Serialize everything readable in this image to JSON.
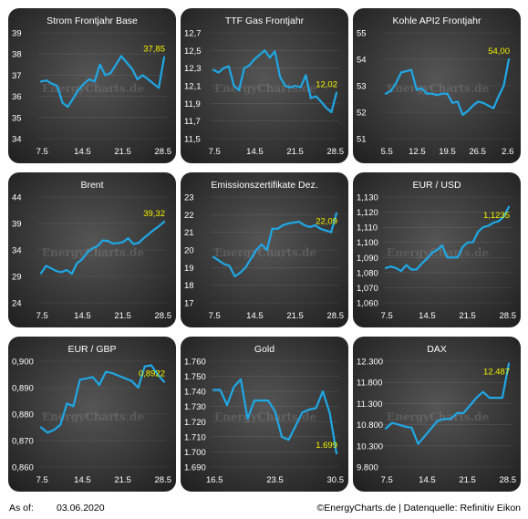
{
  "footer": {
    "as_of_label": "As of:",
    "as_of_date": "03.06.2020",
    "credit": "©EnergyCharts.de | Datenquelle: Refinitiv Eikon"
  },
  "watermark": "EnergyCharts.de",
  "colors": {
    "panel_bg_outer": "#1e1e1e",
    "panel_bg_inner": "#555555",
    "line": "#1fa8e6",
    "last_label": "#f5f500",
    "text": "#ffffff"
  },
  "chart_data": [
    {
      "type": "line",
      "title": "Strom Frontjahr Base",
      "x_ticks": [
        "7.5",
        "14.5",
        "21.5",
        "28.5"
      ],
      "y_ticks": [
        "34",
        "35",
        "36",
        "37",
        "38",
        "39"
      ],
      "ylim": [
        34,
        39
      ],
      "last_label": "37,85",
      "values": [
        36.7,
        36.75,
        36.6,
        36.5,
        35.7,
        35.5,
        35.9,
        36.3,
        36.6,
        36.8,
        36.7,
        37.5,
        37.0,
        37.1,
        37.5,
        37.9,
        37.6,
        37.3,
        36.8,
        37.0,
        36.8,
        36.6,
        36.4,
        37.85
      ],
      "grid": true
    },
    {
      "type": "line",
      "title": "TTF Gas Frontjahr",
      "x_ticks": [
        "7.5",
        "14.5",
        "21.5",
        "28.5"
      ],
      "y_ticks": [
        "11,5",
        "11,7",
        "11,9",
        "12,1",
        "12,3",
        "12,5",
        "12,7"
      ],
      "ylim": [
        11.5,
        12.7
      ],
      "last_label": "12,02",
      "values": [
        12.28,
        12.25,
        12.3,
        12.32,
        12.1,
        12.05,
        12.3,
        12.33,
        12.4,
        12.45,
        12.5,
        12.42,
        12.49,
        12.2,
        12.1,
        12.08,
        12.1,
        12.08,
        12.22,
        11.96,
        11.98,
        11.92,
        11.85,
        11.8,
        12.02
      ],
      "grid": true
    },
    {
      "type": "line",
      "title": "Kohle API2 Frontjahr",
      "x_ticks": [
        "5.5",
        "12.5",
        "19.5",
        "26.5",
        "2.6"
      ],
      "y_ticks": [
        "51",
        "52",
        "53",
        "54",
        "55"
      ],
      "ylim": [
        51,
        55
      ],
      "last_label": "54,00",
      "values": [
        52.7,
        52.8,
        53.1,
        53.5,
        53.55,
        53.6,
        52.85,
        52.9,
        52.7,
        52.7,
        52.65,
        52.7,
        52.7,
        52.35,
        52.4,
        51.9,
        52.05,
        52.25,
        52.4,
        52.35,
        52.25,
        52.15,
        52.6,
        53.0,
        54.0
      ],
      "grid": true
    },
    {
      "type": "line",
      "title": "Brent",
      "x_ticks": [
        "7.5",
        "14.5",
        "21.5",
        "28.5"
      ],
      "y_ticks": [
        "24",
        "29",
        "34",
        "39",
        "44"
      ],
      "ylim": [
        24,
        44
      ],
      "last_label": "39,32",
      "values": [
        29.6,
        31.0,
        30.5,
        30.0,
        29.8,
        30.2,
        29.5,
        31.5,
        32.2,
        33.5,
        34.3,
        34.7,
        35.8,
        35.7,
        35.2,
        35.3,
        35.5,
        36.2,
        35.1,
        35.3,
        36.2,
        37.0,
        37.8,
        38.5,
        39.32
      ],
      "grid": true
    },
    {
      "type": "line",
      "title": "Emissionszertifikate Dez.",
      "x_ticks": [
        "7.5",
        "14.5",
        "21.5",
        "28.5"
      ],
      "y_ticks": [
        "17",
        "18",
        "19",
        "20",
        "21",
        "22",
        "23"
      ],
      "ylim": [
        17,
        23
      ],
      "last_label": "22,09",
      "values": [
        19.6,
        19.4,
        19.2,
        19.1,
        18.5,
        18.7,
        19.0,
        19.5,
        20.0,
        20.3,
        20.0,
        21.2,
        21.2,
        21.4,
        21.5,
        21.55,
        21.6,
        21.4,
        21.3,
        21.4,
        21.2,
        21.1,
        21.0,
        22.09
      ],
      "grid": true
    },
    {
      "type": "line",
      "title": "EUR / USD",
      "x_ticks": [
        "7.5",
        "14.5",
        "21.5",
        "28.5"
      ],
      "y_ticks": [
        "1,060",
        "1,070",
        "1,080",
        "1,090",
        "1,100",
        "1,110",
        "1,120",
        "1,130"
      ],
      "ylim": [
        1.06,
        1.13
      ],
      "last_label": "1,1235",
      "values": [
        1.083,
        1.084,
        1.083,
        1.081,
        1.085,
        1.082,
        1.082,
        1.086,
        1.089,
        1.093,
        1.095,
        1.098,
        1.09,
        1.09,
        1.09,
        1.097,
        1.1,
        1.1,
        1.107,
        1.11,
        1.111,
        1.113,
        1.114,
        1.117,
        1.1235
      ],
      "grid": true
    },
    {
      "type": "line",
      "title": "EUR / GBP",
      "x_ticks": [
        "7.5",
        "14.5",
        "21.5",
        "28.5"
      ],
      "y_ticks": [
        "0,860",
        "0,870",
        "0,880",
        "0,890",
        "0,900"
      ],
      "ylim": [
        0.86,
        0.9
      ],
      "last_label": "0,8922",
      "values": [
        0.875,
        0.873,
        0.874,
        0.876,
        0.884,
        0.883,
        0.893,
        0.8935,
        0.894,
        0.891,
        0.896,
        0.8955,
        0.8945,
        0.8935,
        0.8925,
        0.89,
        0.898,
        0.8985,
        0.895,
        0.8922
      ],
      "grid": true
    },
    {
      "type": "line",
      "title": "Gold",
      "x_ticks": [
        "16.5",
        "23.5",
        "30.5"
      ],
      "y_ticks": [
        "1.690",
        "1.700",
        "1.710",
        "1.720",
        "1.730",
        "1.740",
        "1.750",
        "1.760"
      ],
      "ylim": [
        1690,
        1760
      ],
      "last_label": "1.699",
      "values": [
        1741,
        1741,
        1731,
        1743,
        1748,
        1722,
        1734,
        1734,
        1734,
        1727,
        1710,
        1708,
        1717,
        1726,
        1728,
        1729,
        1740,
        1726,
        1699
      ],
      "grid": true
    },
    {
      "type": "line",
      "title": "DAX",
      "x_ticks": [
        "7.5",
        "14.5",
        "21.5",
        "28.5"
      ],
      "y_ticks": [
        "9.800",
        "10.300",
        "10.800",
        "11.300",
        "11.800",
        "12.300"
      ],
      "ylim": [
        9800,
        12550
      ],
      "last_label": "12.487",
      "values": [
        10800,
        10950,
        10900,
        10850,
        10820,
        10400,
        10600,
        10800,
        11000,
        11050,
        11050,
        11200,
        11200,
        11400,
        11600,
        11750,
        11600,
        11600,
        11600,
        12487
      ],
      "grid": true
    }
  ]
}
